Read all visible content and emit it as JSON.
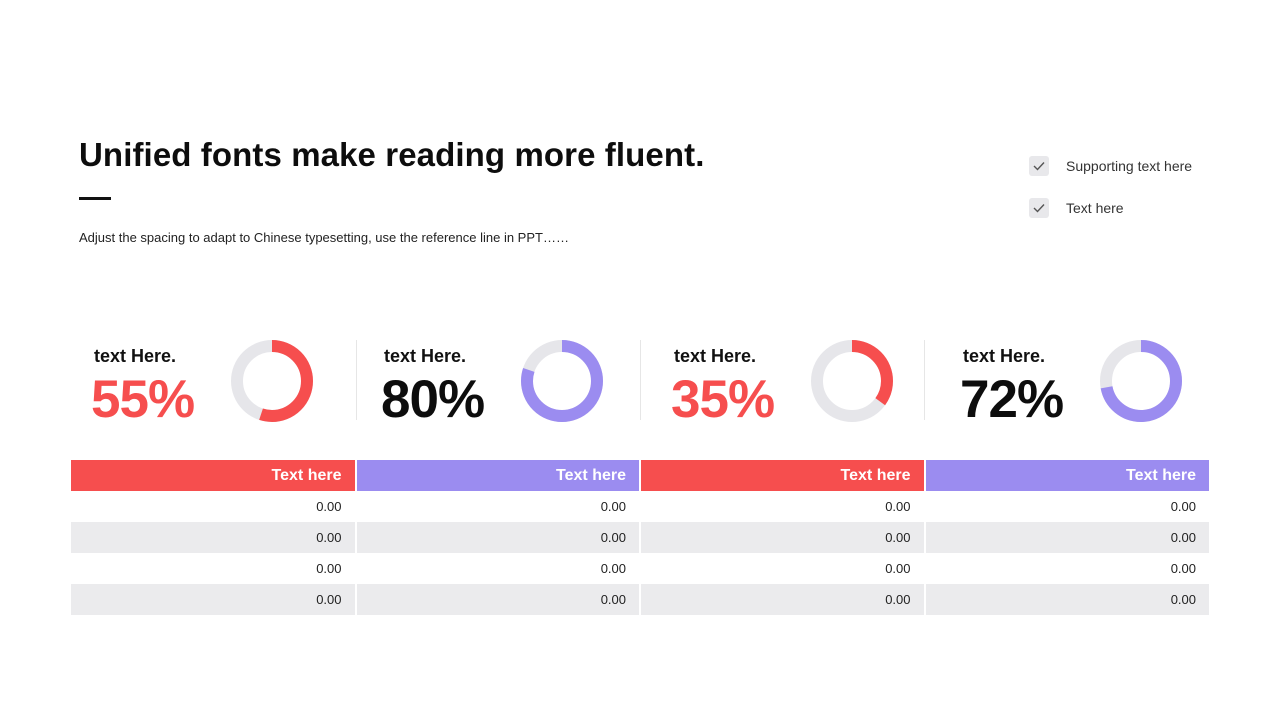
{
  "header": {
    "title": "Unified fonts make reading more fluent.",
    "subtitle": "Adjust the spacing to adapt to Chinese typesetting, use the reference line in PPT……"
  },
  "checklist": [
    {
      "label": "Supporting text here",
      "checked": true
    },
    {
      "label": "Text here",
      "checked": true
    }
  ],
  "colors": {
    "red": "#f64e4e",
    "purple": "#9b8cf0",
    "black": "#0d0d0d",
    "track": "#e6e6ea"
  },
  "stats": [
    {
      "label": "text Here.",
      "value": "55%",
      "percent": 55,
      "value_color": "#f64e4e",
      "ring_color": "#f64e4e"
    },
    {
      "label": "text Here.",
      "value": "80%",
      "percent": 80,
      "value_color": "#0d0d0d",
      "ring_color": "#9b8cf0"
    },
    {
      "label": "text Here.",
      "value": "35%",
      "percent": 35,
      "value_color": "#f64e4e",
      "ring_color": "#f64e4e"
    },
    {
      "label": "text Here.",
      "value": "72%",
      "percent": 72,
      "value_color": "#0d0d0d",
      "ring_color": "#9b8cf0"
    }
  ],
  "table": {
    "headers": [
      "Text here",
      "Text here",
      "Text here",
      "Text here"
    ],
    "header_colors": [
      "#f64e4e",
      "#9b8cf0",
      "#f64e4e",
      "#9b8cf0"
    ],
    "rows": [
      [
        "0.00",
        "0.00",
        "0.00",
        "0.00"
      ],
      [
        "0.00",
        "0.00",
        "0.00",
        "0.00"
      ],
      [
        "0.00",
        "0.00",
        "0.00",
        "0.00"
      ],
      [
        "0.00",
        "0.00",
        "0.00",
        "0.00"
      ]
    ]
  }
}
